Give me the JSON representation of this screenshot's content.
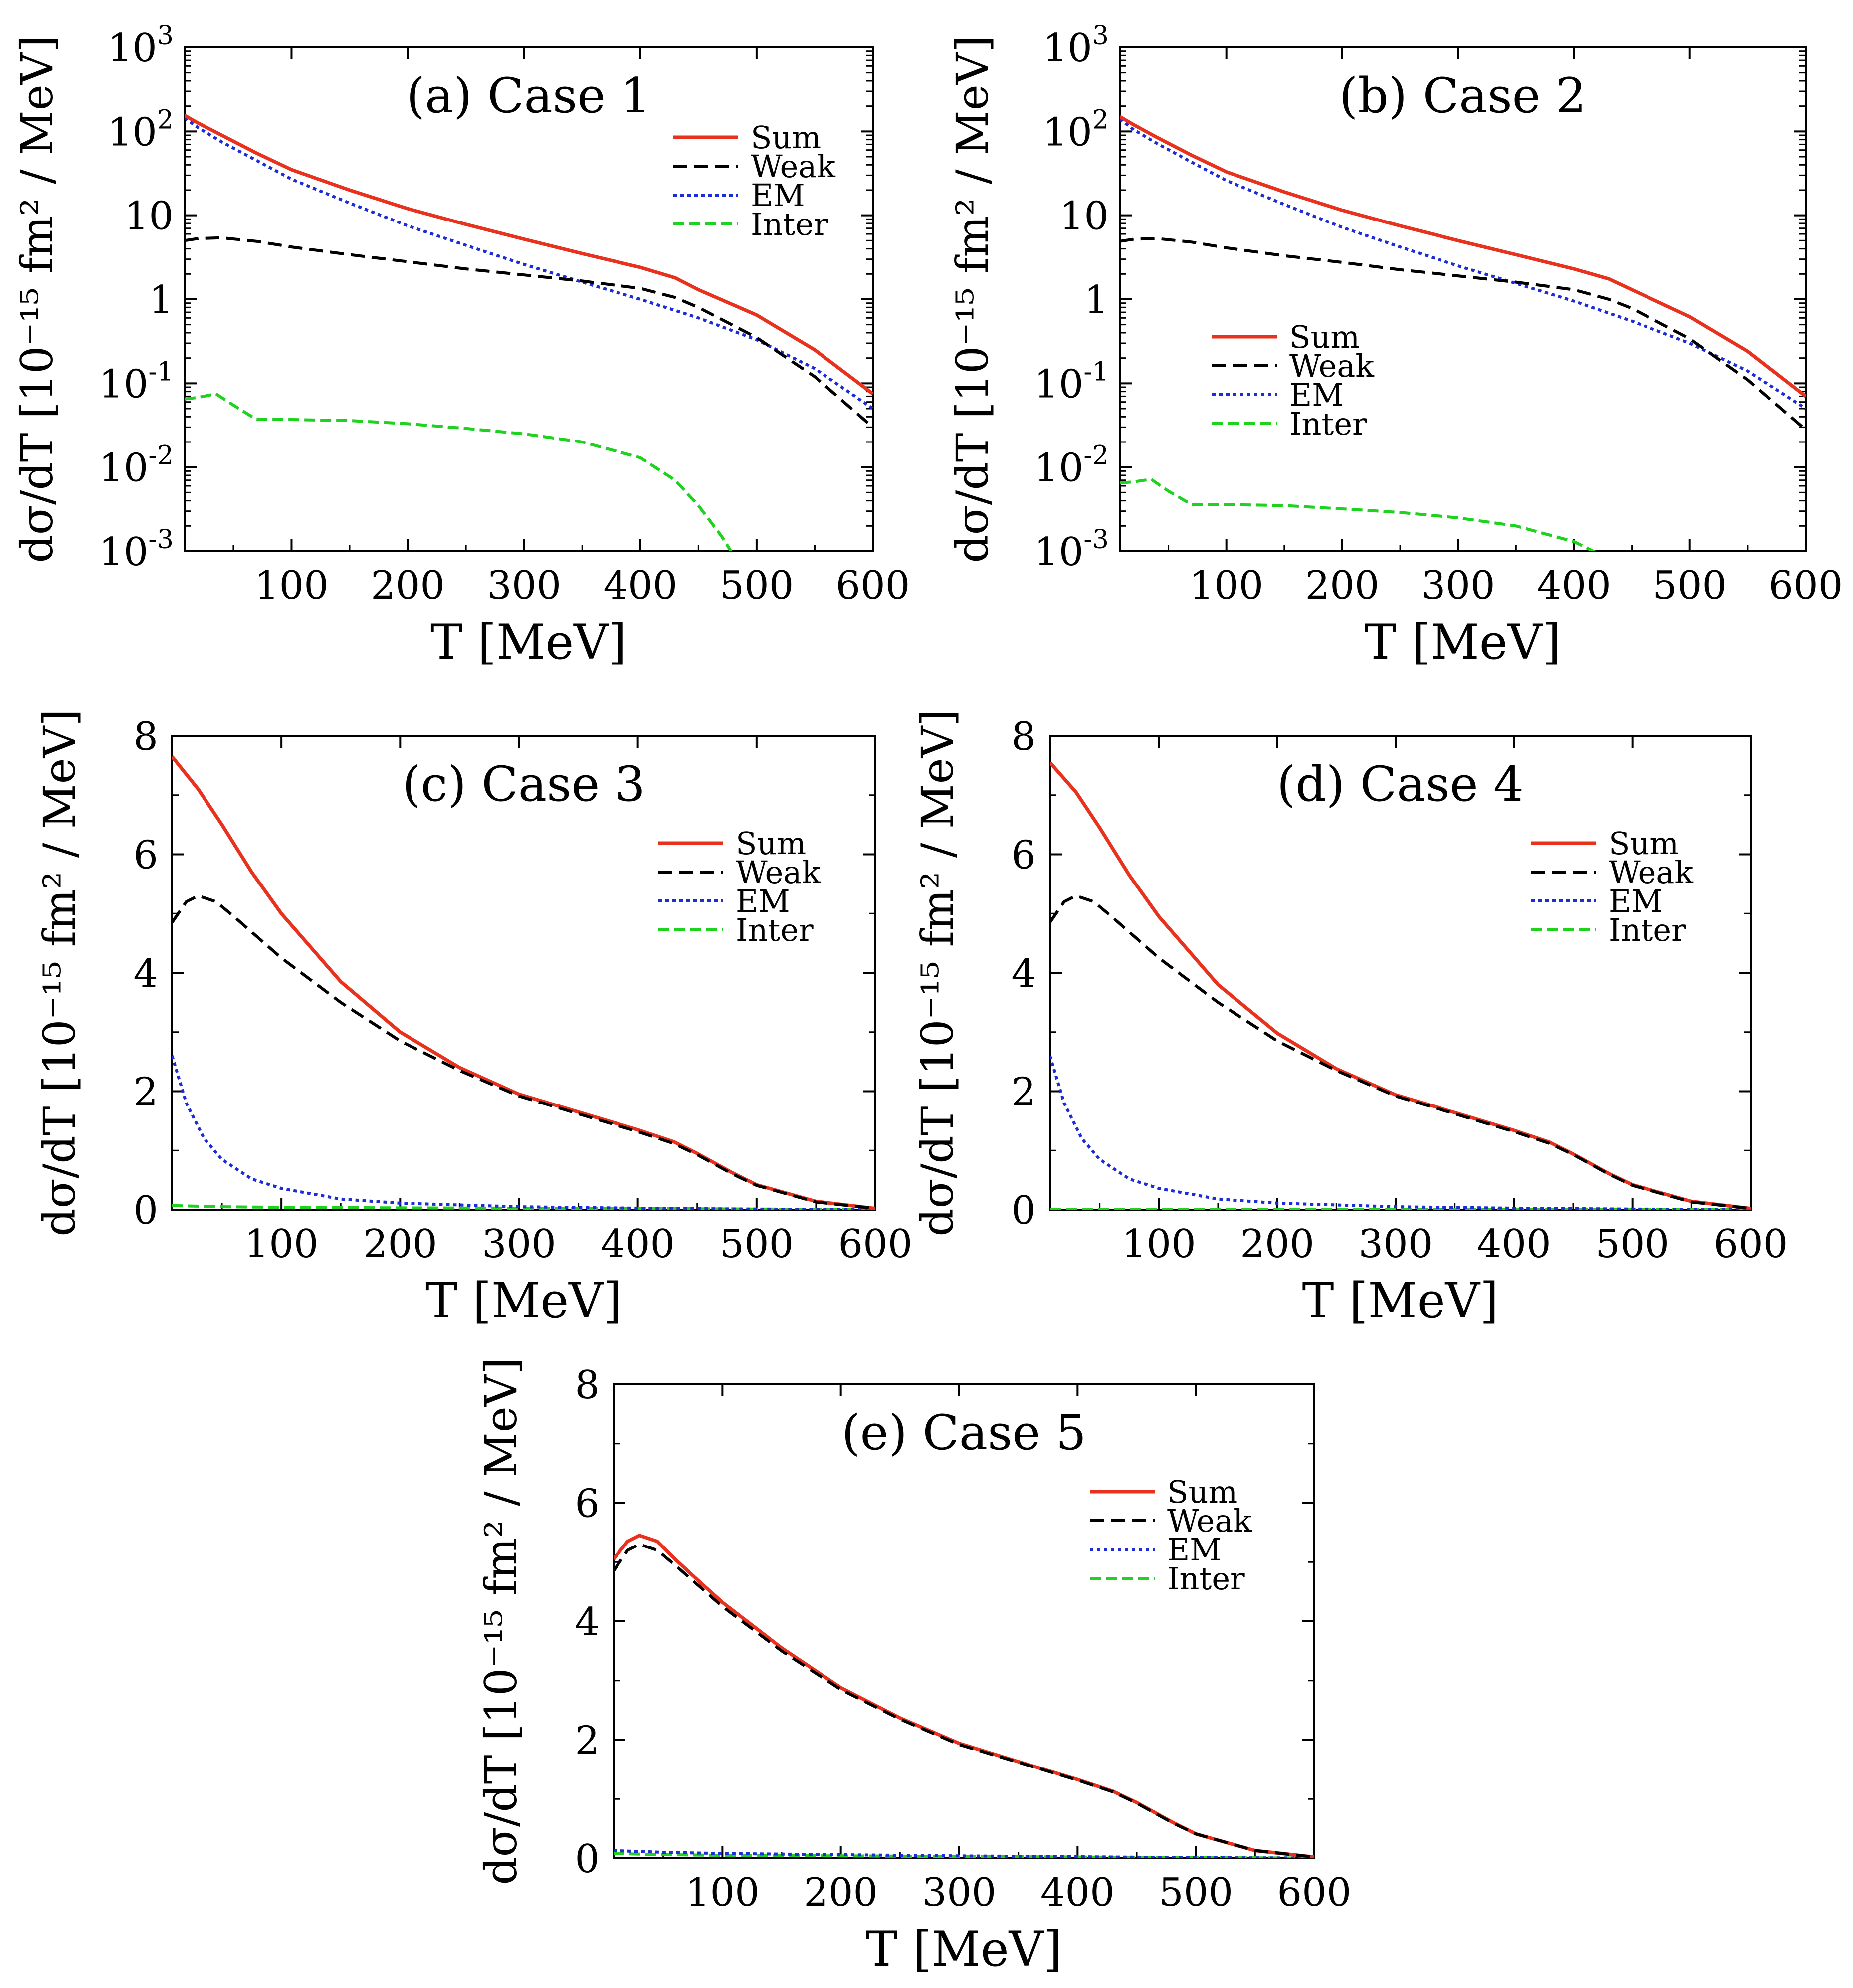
{
  "figure": {
    "background": "#ffffff"
  },
  "series_styles": {
    "Sum": {
      "color": "#e8321e",
      "dash": "",
      "width": 7
    },
    "Weak": {
      "color": "#000000",
      "dash": "28 14",
      "width": 6
    },
    "EM": {
      "color": "#1c2cd6",
      "dash": "7 7",
      "width": 6
    },
    "Inter": {
      "color": "#1fd21f",
      "dash": "22 10",
      "width": 6
    }
  },
  "chart_data": [
    {
      "type": "line",
      "title": "(a) Case 1",
      "xlabel": "T [MeV]",
      "ylabel": "dσ/dT [10⁻¹⁵ fm² / MeV]",
      "yscale": "log",
      "xlim": [
        8,
        600
      ],
      "ylim": [
        0.001,
        1000
      ],
      "xticks": [
        100,
        200,
        300,
        400,
        500,
        600
      ],
      "yticks": [
        0.001,
        0.01,
        0.1,
        1,
        10,
        100,
        1000
      ],
      "yticklabels": [
        [
          "10",
          "-3"
        ],
        [
          "10",
          "-2"
        ],
        [
          "10",
          "-1"
        ],
        [
          "1",
          ""
        ],
        [
          "10",
          ""
        ],
        [
          "10",
          "2"
        ],
        [
          "10",
          "3"
        ]
      ],
      "legend": "top-right",
      "series": [
        {
          "name": "Sum",
          "x": [
            8,
            20,
            40,
            70,
            100,
            150,
            200,
            250,
            300,
            350,
            400,
            430,
            450,
            500,
            550,
            600
          ],
          "y": [
            155,
            125,
            90,
            55,
            35,
            20,
            12,
            7.8,
            5.2,
            3.5,
            2.4,
            1.8,
            1.3,
            0.65,
            0.25,
            0.075
          ]
        },
        {
          "name": "Weak",
          "x": [
            8,
            20,
            40,
            70,
            100,
            150,
            200,
            250,
            300,
            350,
            400,
            430,
            450,
            500,
            550,
            600
          ],
          "y": [
            5,
            5.3,
            5.4,
            4.9,
            4.2,
            3.4,
            2.8,
            2.3,
            1.95,
            1.65,
            1.35,
            1.05,
            0.8,
            0.35,
            0.12,
            0.03
          ]
        },
        {
          "name": "EM",
          "x": [
            8,
            20,
            40,
            70,
            100,
            150,
            200,
            250,
            300,
            350,
            400,
            450,
            500,
            550,
            600
          ],
          "y": [
            145,
            110,
            75,
            45,
            27,
            14,
            7.5,
            4.4,
            2.6,
            1.6,
            1.0,
            0.6,
            0.33,
            0.15,
            0.05
          ]
        },
        {
          "name": "Inter",
          "x": [
            8,
            20,
            35,
            50,
            70,
            100,
            150,
            200,
            250,
            300,
            350,
            400,
            430,
            450,
            470,
            480
          ],
          "y": [
            0.065,
            0.068,
            0.075,
            0.055,
            0.037,
            0.037,
            0.036,
            0.033,
            0.029,
            0.025,
            0.02,
            0.013,
            0.007,
            0.0035,
            0.0015,
            0.0009
          ]
        }
      ]
    },
    {
      "type": "line",
      "title": "(b) Case 2",
      "xlabel": "T [MeV]",
      "ylabel": "dσ/dT [10⁻¹⁵ fm² / MeV]",
      "yscale": "log",
      "xlim": [
        8,
        600
      ],
      "ylim": [
        0.001,
        1000
      ],
      "xticks": [
        100,
        200,
        300,
        400,
        500,
        600
      ],
      "yticks": [
        0.001,
        0.01,
        0.1,
        1,
        10,
        100,
        1000
      ],
      "yticklabels": [
        [
          "10",
          "-3"
        ],
        [
          "10",
          "-2"
        ],
        [
          "10",
          "-1"
        ],
        [
          "1",
          ""
        ],
        [
          "10",
          ""
        ],
        [
          "10",
          "2"
        ],
        [
          "10",
          "3"
        ]
      ],
      "legend": "center-left",
      "series": [
        {
          "name": "Sum",
          "x": [
            8,
            20,
            40,
            70,
            100,
            150,
            200,
            250,
            300,
            350,
            400,
            430,
            450,
            500,
            550,
            600
          ],
          "y": [
            150,
            120,
            85,
            52,
            33,
            19,
            11.5,
            7.5,
            5.0,
            3.4,
            2.3,
            1.75,
            1.3,
            0.62,
            0.24,
            0.07
          ]
        },
        {
          "name": "Weak",
          "x": [
            8,
            20,
            40,
            70,
            100,
            150,
            200,
            250,
            300,
            350,
            400,
            430,
            450,
            500,
            550,
            600
          ],
          "y": [
            4.9,
            5.2,
            5.3,
            4.8,
            4.1,
            3.3,
            2.75,
            2.25,
            1.9,
            1.6,
            1.3,
            1.0,
            0.78,
            0.34,
            0.11,
            0.028
          ]
        },
        {
          "name": "EM",
          "x": [
            8,
            20,
            40,
            70,
            100,
            150,
            200,
            250,
            300,
            350,
            400,
            450,
            500,
            550,
            600
          ],
          "y": [
            140,
            105,
            72,
            43,
            26,
            13.5,
            7.2,
            4.2,
            2.5,
            1.55,
            0.95,
            0.55,
            0.3,
            0.14,
            0.05
          ]
        },
        {
          "name": "Inter",
          "x": [
            8,
            20,
            35,
            50,
            70,
            100,
            150,
            200,
            250,
            300,
            350,
            400,
            420
          ],
          "y": [
            0.0065,
            0.0067,
            0.0072,
            0.0052,
            0.0036,
            0.0036,
            0.0035,
            0.0032,
            0.0029,
            0.0025,
            0.002,
            0.0013,
            0.00095
          ]
        }
      ]
    },
    {
      "type": "line",
      "title": "(c) Case 3",
      "xlabel": "T [MeV]",
      "ylabel": "dσ/dT [10⁻¹⁵ fm² / MeV]",
      "yscale": "linear",
      "xlim": [
        8,
        600
      ],
      "ylim": [
        0,
        8
      ],
      "xticks": [
        100,
        200,
        300,
        400,
        500,
        600
      ],
      "yticks": [
        0,
        2,
        4,
        6,
        8
      ],
      "legend": "top-right",
      "series": [
        {
          "name": "Sum",
          "x": [
            8,
            30,
            50,
            75,
            100,
            150,
            200,
            250,
            300,
            350,
            400,
            430,
            450,
            480,
            500,
            550,
            600
          ],
          "y": [
            7.65,
            7.1,
            6.5,
            5.7,
            5.0,
            3.85,
            3.0,
            2.4,
            1.95,
            1.65,
            1.35,
            1.15,
            0.95,
            0.62,
            0.42,
            0.14,
            0.02
          ]
        },
        {
          "name": "Weak",
          "x": [
            8,
            20,
            30,
            45,
            60,
            80,
            100,
            150,
            200,
            250,
            300,
            350,
            400,
            430,
            450,
            480,
            500,
            550,
            600
          ],
          "y": [
            4.85,
            5.2,
            5.3,
            5.2,
            4.95,
            4.6,
            4.25,
            3.5,
            2.85,
            2.35,
            1.92,
            1.62,
            1.32,
            1.12,
            0.93,
            0.6,
            0.41,
            0.13,
            0.02
          ]
        },
        {
          "name": "EM",
          "x": [
            8,
            20,
            35,
            50,
            75,
            100,
            150,
            200,
            300,
            400,
            500,
            600
          ],
          "y": [
            2.6,
            1.8,
            1.2,
            0.85,
            0.52,
            0.36,
            0.18,
            0.11,
            0.05,
            0.025,
            0.01,
            0.003
          ]
        },
        {
          "name": "Inter",
          "x": [
            8,
            50,
            100,
            200,
            300,
            400,
            450,
            500,
            600
          ],
          "y": [
            0.07,
            0.05,
            0.04,
            0.03,
            0.025,
            0.02,
            0.015,
            0.01,
            0.003
          ]
        }
      ]
    },
    {
      "type": "line",
      "title": "(d) Case 4",
      "xlabel": "T [MeV]",
      "ylabel": "dσ/dT [10⁻¹⁵ fm² / MeV]",
      "yscale": "linear",
      "xlim": [
        8,
        600
      ],
      "ylim": [
        0,
        8
      ],
      "xticks": [
        100,
        200,
        300,
        400,
        500,
        600
      ],
      "yticks": [
        0,
        2,
        4,
        6,
        8
      ],
      "legend": "top-right",
      "series": [
        {
          "name": "Sum",
          "x": [
            8,
            30,
            50,
            75,
            100,
            150,
            200,
            250,
            300,
            350,
            400,
            430,
            450,
            480,
            500,
            550,
            600
          ],
          "y": [
            7.55,
            7.05,
            6.45,
            5.65,
            4.95,
            3.8,
            2.98,
            2.38,
            1.94,
            1.64,
            1.34,
            1.14,
            0.94,
            0.61,
            0.42,
            0.14,
            0.02
          ]
        },
        {
          "name": "Weak",
          "x": [
            8,
            20,
            30,
            45,
            60,
            80,
            100,
            150,
            200,
            250,
            300,
            350,
            400,
            430,
            450,
            480,
            500,
            550,
            600
          ],
          "y": [
            4.85,
            5.2,
            5.3,
            5.2,
            4.95,
            4.6,
            4.25,
            3.5,
            2.85,
            2.35,
            1.92,
            1.62,
            1.32,
            1.12,
            0.93,
            0.6,
            0.41,
            0.13,
            0.02
          ]
        },
        {
          "name": "EM",
          "x": [
            8,
            20,
            35,
            50,
            75,
            100,
            150,
            200,
            300,
            400,
            500,
            600
          ],
          "y": [
            2.6,
            1.8,
            1.2,
            0.85,
            0.52,
            0.36,
            0.18,
            0.11,
            0.05,
            0.025,
            0.01,
            0.003
          ]
        },
        {
          "name": "Inter",
          "x": [
            8,
            100,
            200,
            300,
            400,
            500,
            600
          ],
          "y": [
            0.007,
            0.005,
            0.004,
            0.003,
            0.002,
            0.001,
            0.0003
          ]
        }
      ]
    },
    {
      "type": "line",
      "title": "(e) Case 5",
      "xlabel": "T [MeV]",
      "ylabel": "dσ/dT [10⁻¹⁵ fm² / MeV]",
      "yscale": "linear",
      "xlim": [
        8,
        600
      ],
      "ylim": [
        0,
        8
      ],
      "xticks": [
        100,
        200,
        300,
        400,
        500,
        600
      ],
      "yticks": [
        0,
        2,
        4,
        6,
        8
      ],
      "legend": "top-right",
      "series": [
        {
          "name": "Sum",
          "x": [
            8,
            20,
            30,
            45,
            60,
            80,
            100,
            150,
            200,
            250,
            300,
            350,
            400,
            430,
            450,
            480,
            500,
            550,
            600
          ],
          "y": [
            5.05,
            5.35,
            5.45,
            5.35,
            5.05,
            4.68,
            4.32,
            3.55,
            2.88,
            2.37,
            1.94,
            1.63,
            1.33,
            1.13,
            0.94,
            0.61,
            0.41,
            0.13,
            0.02
          ]
        },
        {
          "name": "Weak",
          "x": [
            8,
            20,
            30,
            45,
            60,
            80,
            100,
            150,
            200,
            250,
            300,
            350,
            400,
            430,
            450,
            480,
            500,
            550,
            600
          ],
          "y": [
            4.85,
            5.2,
            5.3,
            5.2,
            4.95,
            4.6,
            4.25,
            3.5,
            2.85,
            2.35,
            1.92,
            1.62,
            1.32,
            1.12,
            0.93,
            0.6,
            0.41,
            0.13,
            0.02
          ]
        },
        {
          "name": "EM",
          "x": [
            8,
            50,
            100,
            200,
            300,
            400,
            500,
            600
          ],
          "y": [
            0.13,
            0.1,
            0.08,
            0.06,
            0.04,
            0.025,
            0.01,
            0.003
          ]
        },
        {
          "name": "Inter",
          "x": [
            8,
            50,
            100,
            200,
            300,
            400,
            500,
            600
          ],
          "y": [
            0.08,
            0.06,
            0.05,
            0.04,
            0.03,
            0.02,
            0.01,
            0.003
          ]
        }
      ]
    }
  ]
}
